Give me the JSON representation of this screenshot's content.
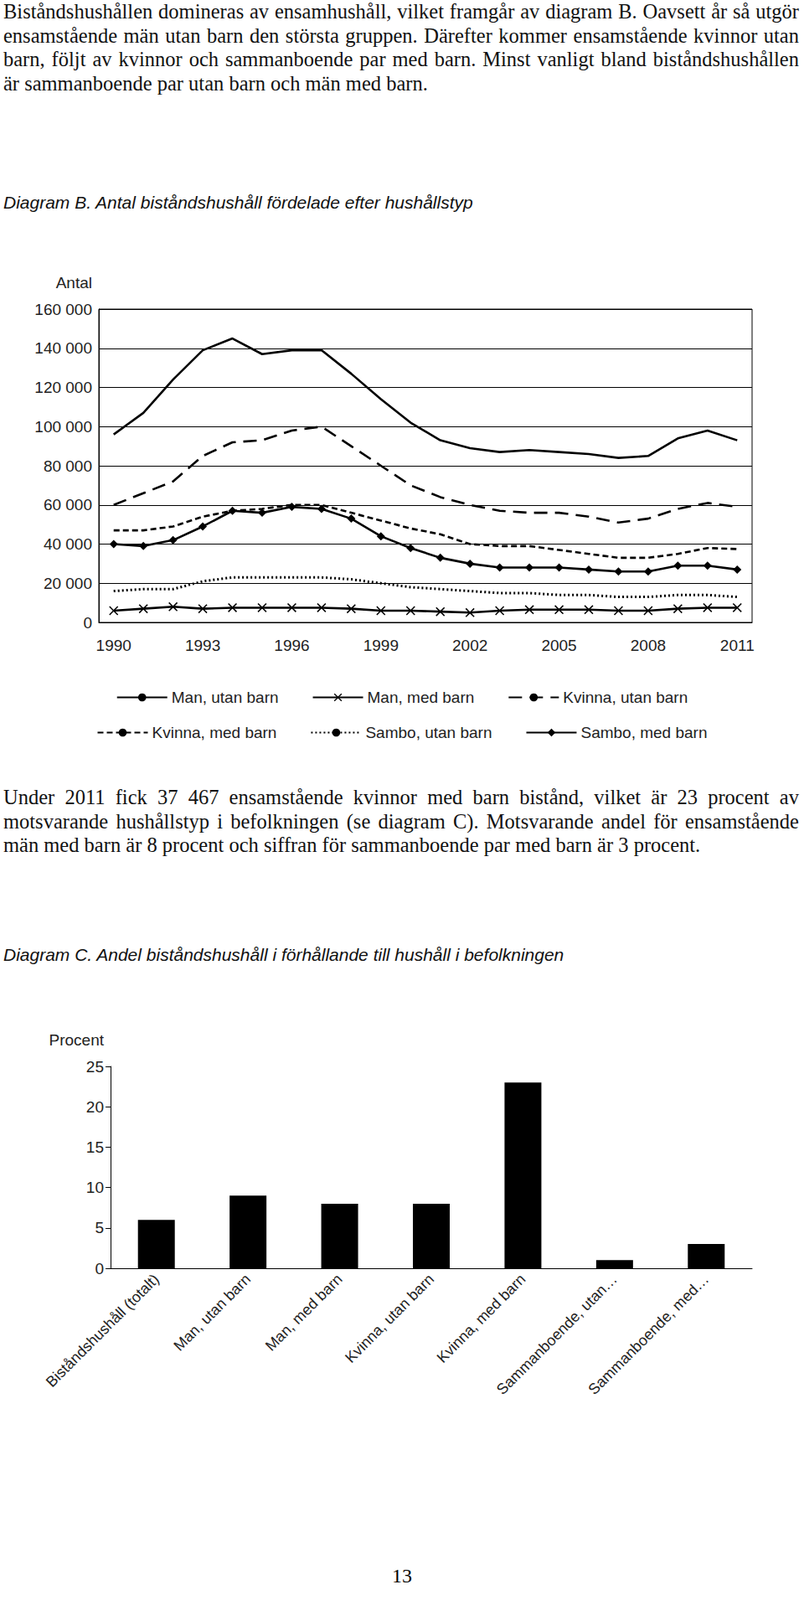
{
  "document": {
    "paragraph_1": "Biståndshushållen domineras av ensamhushåll, vilket framgår av diagram B. Oavsett år så utgör ensamstående män utan barn den största gruppen. Därefter kommer ensamstående kvinnor utan barn, följt av kvinnor och sammanboende par med barn. Minst vanligt bland biståndshushållen är sammanboende par utan barn och män med barn.",
    "paragraph_2": "Under 2011 fick 37 467 ensamstående kvinnor med barn bistånd, vilket är 23 procent av motsvarande hushållstyp i befolkningen (se diagram C). Motsvarande andel för ensamstående män med barn är 8 procent och siffran för sammanboende par med barn är 3 procent.",
    "page_number": 13
  },
  "chart_data": [
    {
      "type": "line",
      "title": "Diagram B. Antal biståndshushåll fördelade efter hushållstyp",
      "ylabel": "Antal",
      "categories": [
        "1990",
        null,
        null,
        "1993",
        null,
        null,
        "1996",
        null,
        null,
        "1999",
        null,
        null,
        "2002",
        null,
        null,
        "2005",
        null,
        null,
        "2008",
        null,
        null,
        "2011"
      ],
      "series": [
        {
          "name": "Man, utan barn",
          "color": "#000000",
          "line_style": "solid",
          "values": [
            96000,
            107000,
            124000,
            139000,
            145000,
            137000,
            139000,
            139000,
            127000,
            114000,
            102000,
            93000,
            89000,
            87000,
            88000,
            87000,
            86000,
            84000,
            85000,
            94000,
            98000,
            93000
          ]
        },
        {
          "name": "Man, med barn",
          "color": "#000000",
          "line_style": "solid",
          "marker": "x",
          "values": [
            6000,
            7000,
            8000,
            7000,
            7500,
            7500,
            7500,
            7500,
            7000,
            6000,
            6000,
            5500,
            5000,
            6000,
            6500,
            6500,
            6500,
            6000,
            6000,
            7000,
            7500,
            7500
          ]
        },
        {
          "name": "Kvinna, utan barn",
          "color": "#000000",
          "line_style": "longdash",
          "values": [
            60000,
            66000,
            72000,
            85000,
            92000,
            93000,
            98000,
            100000,
            90000,
            80000,
            70000,
            64000,
            60000,
            57000,
            56000,
            56000,
            54000,
            51000,
            53000,
            58000,
            61000,
            59000
          ]
        },
        {
          "name": "Kvinna, med barn",
          "color": "#000000",
          "line_style": "dashed",
          "values": [
            47000,
            47000,
            49000,
            54000,
            57000,
            58000,
            60000,
            60000,
            56000,
            52000,
            48000,
            45000,
            40000,
            39000,
            39000,
            37000,
            35000,
            33000,
            33000,
            35000,
            38000,
            37467
          ]
        },
        {
          "name": "Sambo, utan barn",
          "color": "#000000",
          "line_style": "dotted",
          "values": [
            16000,
            17000,
            17000,
            21000,
            23000,
            23000,
            23000,
            23000,
            22000,
            20000,
            18000,
            17000,
            16000,
            15000,
            15000,
            14000,
            14000,
            13000,
            13000,
            14000,
            14000,
            13000
          ]
        },
        {
          "name": "Sambo, med barn",
          "color": "#000000",
          "line_style": "solid",
          "marker": "diamond",
          "values": [
            40000,
            39000,
            42000,
            49000,
            57000,
            56000,
            59000,
            58000,
            53000,
            44000,
            38000,
            33000,
            30000,
            28000,
            28000,
            28000,
            27000,
            26000,
            26000,
            29000,
            29000,
            27000
          ]
        }
      ],
      "ylim": [
        0,
        160000
      ],
      "yticks": [
        0,
        {
          "value": 20000,
          "label": "20 000"
        },
        {
          "value": 40000,
          "label": "40 000"
        },
        {
          "value": 60000,
          "label": "60 000"
        },
        {
          "value": 80000,
          "label": "80 000"
        },
        {
          "value": 100000,
          "label": "100 000"
        },
        {
          "value": 120000,
          "label": "120 000"
        },
        {
          "value": 140000,
          "label": "140 000"
        },
        {
          "value": 160000,
          "label": "160 000"
        }
      ],
      "grid": true,
      "legend": "bottom"
    },
    {
      "type": "bar",
      "title": "Diagram C. Andel biståndshushåll i förhållande till hushåll i befolkningen",
      "ylabel": "Procent",
      "categories": [
        "Biståndshushåll (totalt)",
        "Man, utan barn",
        "Man, med barn",
        "Kvinna, utan barn",
        "Kvinna, med barn",
        "Sammanboende, utan…",
        "Sammanboende, med…"
      ],
      "values": [
        6,
        9,
        8,
        8,
        23,
        1,
        3
      ],
      "color": "#000000",
      "ylim": [
        0,
        25
      ],
      "yticks": [
        0,
        5,
        10,
        15,
        20,
        25
      ],
      "grid": false
    }
  ]
}
